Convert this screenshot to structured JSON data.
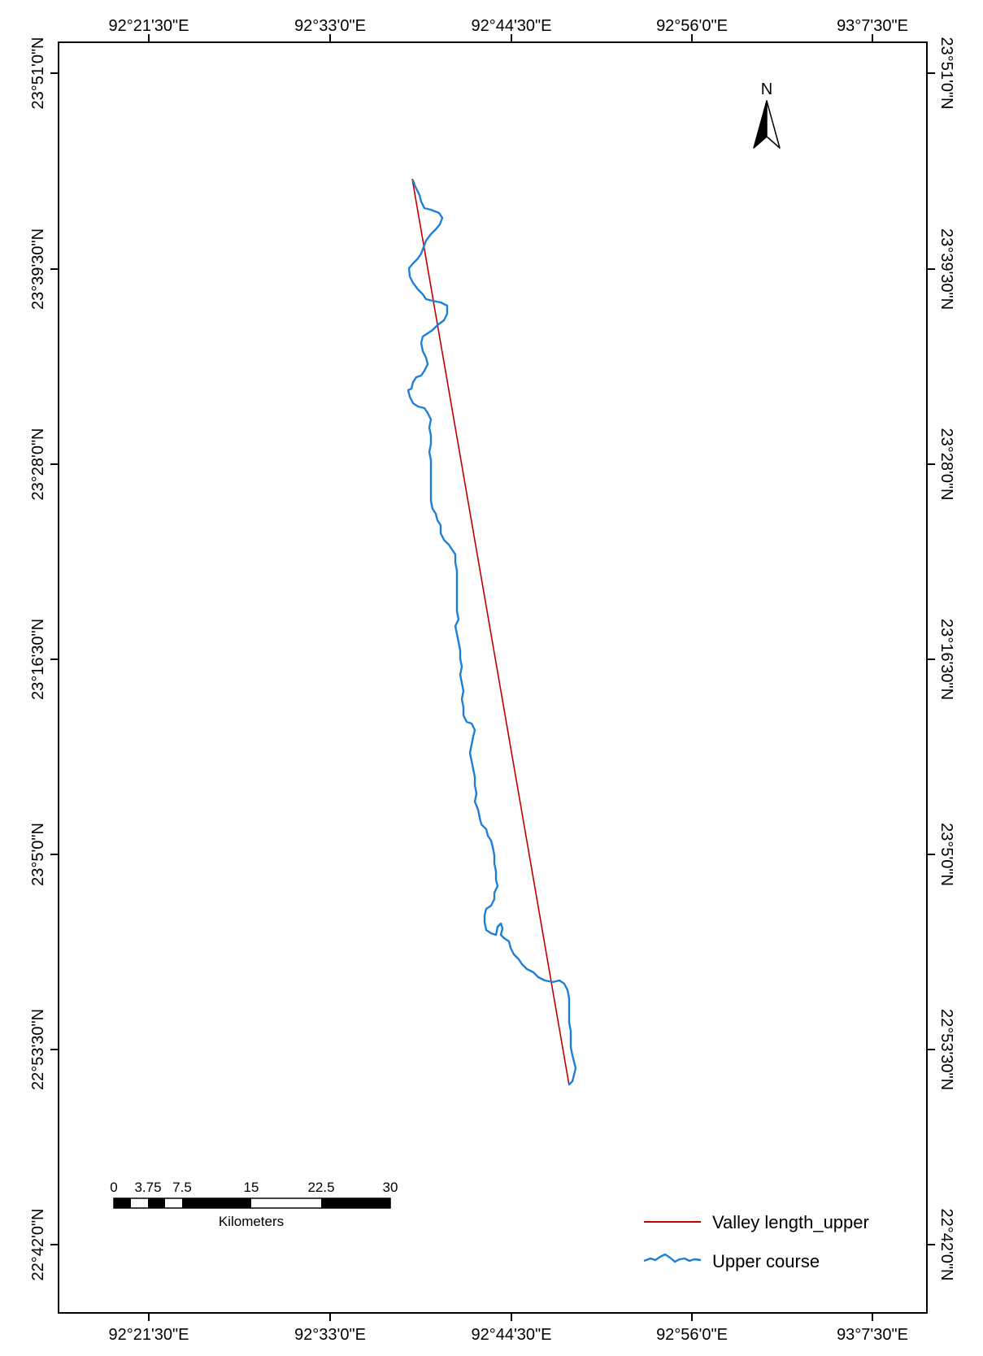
{
  "map": {
    "x_ticks": [
      "92°21'30\"E",
      "92°33'0\"E",
      "92°44'30\"E",
      "92°56'0\"E",
      "93°7'30\"E"
    ],
    "y_ticks": [
      "23°51'0\"N",
      "23°39'30\"N",
      "23°28'0\"N",
      "23°16'30\"N",
      "23°5'0\"N",
      "22°53'30\"N",
      "22°42'0\"N"
    ],
    "north_arrow": {
      "label": "N",
      "icon": "north-arrow-icon"
    },
    "scale_bar": {
      "labels": [
        "0",
        "3.75",
        "7.5",
        "15",
        "22.5",
        "30"
      ],
      "unit": "Kilometers"
    },
    "legend": {
      "valley_line": {
        "label": "Valley length_upper",
        "color": "#c00000"
      },
      "river": {
        "label": "Upper course",
        "color": "#1e7fd6"
      }
    }
  }
}
